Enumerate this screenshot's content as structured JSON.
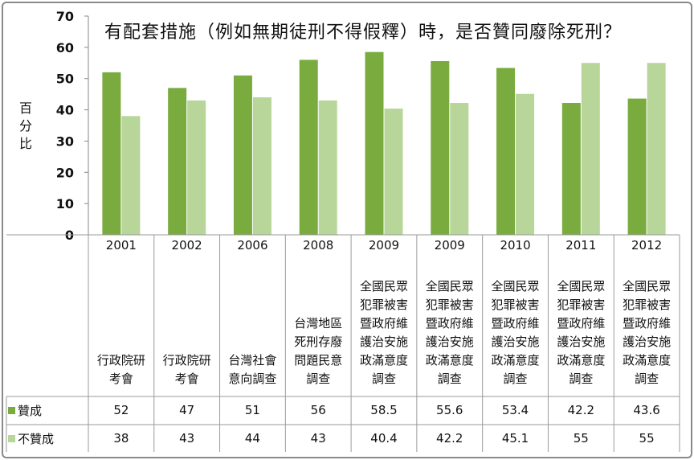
{
  "chart_data": {
    "type": "bar",
    "title": "有配套措施（例如無期徒刑不得假釋）時，是否贊同廢除死刑？",
    "ylabel": "百分比",
    "ylim": [
      0,
      70
    ],
    "yticks": [
      0,
      10,
      20,
      30,
      40,
      50,
      60,
      70
    ],
    "grid": false,
    "legend": "bottom-left (data table)",
    "years": [
      "2001",
      "2002",
      "2006",
      "2008",
      "2009",
      "2009",
      "2010",
      "2011",
      "2012"
    ],
    "sources": [
      "行政院研考會",
      "行政院研考會",
      "台灣社會意向調查",
      "台灣地區死刑存廢問題民意調查",
      "全國民眾犯罪被害暨政府維護治安施政滿意度調查",
      "全國民眾犯罪被害暨政府維護治安施政滿意度調查",
      "全國民眾犯罪被害暨政府維護治安施政滿意度調查",
      "全國民眾犯罪被害暨政府維護治安施政滿意度調查",
      "全國民眾犯罪被害暨政府維護治安施政滿意度調查"
    ],
    "source_lines": [
      [
        "行政院研",
        "考會"
      ],
      [
        "行政院研",
        "考會"
      ],
      [
        "台灣社會",
        "意向調查"
      ],
      [
        "台灣地區",
        "死刑存廢",
        "問題民意",
        "調查"
      ],
      [
        "全國民眾",
        "犯罪被害",
        "暨政府維",
        "護治安施",
        "政滿意度",
        "調查"
      ],
      [
        "全國民眾",
        "犯罪被害",
        "暨政府維",
        "護治安施",
        "政滿意度",
        "調查"
      ],
      [
        "全國民眾",
        "犯罪被害",
        "暨政府維",
        "護治安施",
        "政滿意度",
        "調查"
      ],
      [
        "全國民眾",
        "犯罪被害",
        "暨政府維",
        "護治安施",
        "政滿意度",
        "調查"
      ],
      [
        "全國民眾",
        "犯罪被害",
        "暨政府維",
        "護治安施",
        "政滿意度",
        "調查"
      ]
    ],
    "series": [
      {
        "name": "贊成",
        "color": "#7aab3e",
        "values": [
          52,
          47,
          51,
          56,
          58.5,
          55.6,
          53.4,
          42.2,
          43.6
        ],
        "labels": [
          "52",
          "47",
          "51",
          "56",
          "58.5",
          "55.6",
          "53.4",
          "42.2",
          "43.6"
        ]
      },
      {
        "name": "不贊成",
        "color": "#b8d59a",
        "values": [
          38,
          43,
          44,
          43,
          40.4,
          42.2,
          45.1,
          55,
          55
        ],
        "labels": [
          "38",
          "43",
          "44",
          "43",
          "40.4",
          "42.2",
          "45.1",
          "55",
          "55"
        ]
      }
    ]
  }
}
